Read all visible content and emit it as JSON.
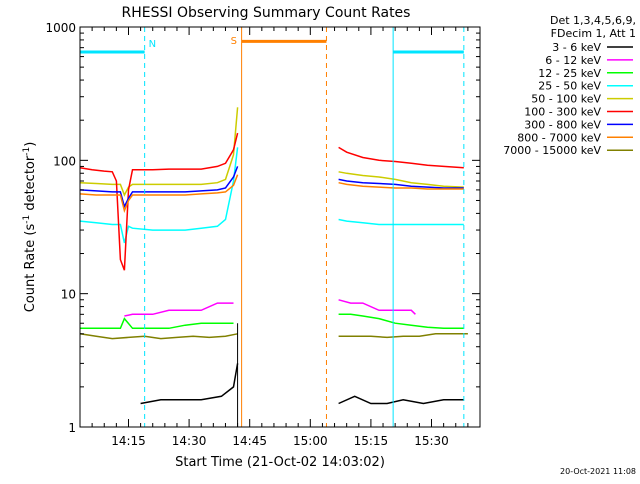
{
  "chart_data": {
    "type": "line",
    "title": "RHESSI Observing Summary Count Rates",
    "xlabel": "Start Time (21-Oct-02 14:03:02)",
    "ylabel": "Count Rate (s",
    "ylabel_sup1": "-1",
    "ylabel_mid": " detector",
    "ylabel_sup2": "-1",
    "ylabel_end": ")",
    "x_unit": "minutes after 14:03:02",
    "xlim": [
      0,
      99
    ],
    "ylim": [
      1,
      1000
    ],
    "y_scale": "log",
    "x_ticks": [
      {
        "value": 12,
        "label": "14:15"
      },
      {
        "value": 27,
        "label": "14:30"
      },
      {
        "value": 42,
        "label": "14:45"
      },
      {
        "value": 57,
        "label": "15:00"
      },
      {
        "value": 72,
        "label": "15:15"
      },
      {
        "value": 87,
        "label": "15:30"
      }
    ],
    "y_ticks": [
      {
        "value": 1,
        "label": "1"
      },
      {
        "value": 10,
        "label": "10"
      },
      {
        "value": 100,
        "label": "100"
      },
      {
        "value": 1000,
        "label": "1000"
      }
    ],
    "legend_header": [
      "Det 1,3,4,5,6,9,",
      "FDecim 1, Att 1"
    ],
    "legend_position": "right",
    "timestamp": "20-Oct-2021 11:08",
    "series": [
      {
        "name": "3 - 6 keV",
        "color": "#000000",
        "segments": [
          {
            "x": [
              15,
              20,
              25,
              30,
              35,
              38,
              39
            ],
            "y": [
              1.5,
              1.6,
              1.6,
              1.6,
              1.7,
              2,
              3
            ]
          },
          {
            "x": [
              64,
              68,
              72,
              76,
              80,
              85,
              90,
              95
            ],
            "y": [
              1.5,
              1.7,
              1.5,
              1.5,
              1.6,
              1.5,
              1.6,
              1.6
            ]
          }
        ]
      },
      {
        "name": "6 - 12 keV",
        "color": "#ff00ff",
        "segments": [
          {
            "x": [
              11,
              13,
              18,
              22,
              26,
              30,
              34,
              38
            ],
            "y": [
              6.8,
              7,
              7,
              7.5,
              7.5,
              7.5,
              8.5,
              8.5
            ]
          },
          {
            "x": [
              64,
              67,
              70,
              74,
              78,
              82,
              83
            ],
            "y": [
              9,
              8.5,
              8.5,
              7.5,
              7.5,
              7.5,
              7
            ]
          }
        ]
      },
      {
        "name": "12 - 25 keV",
        "color": "#00ff00",
        "segments": [
          {
            "x": [
              0,
              4,
              8,
              10,
              11,
              13,
              18,
              22,
              26,
              30,
              34,
              38
            ],
            "y": [
              5.5,
              5.5,
              5.5,
              5.5,
              6.5,
              5.5,
              5.5,
              5.5,
              5.8,
              6,
              6,
              6
            ]
          },
          {
            "x": [
              64,
              67,
              70,
              74,
              78,
              82,
              86,
              90,
              95
            ],
            "y": [
              7,
              7,
              6.8,
              6.5,
              6,
              5.8,
              5.6,
              5.5,
              5.5
            ]
          }
        ]
      },
      {
        "name": "25 - 50 keV",
        "color": "#00ffff",
        "segments": [
          {
            "x": [
              0,
              4,
              8,
              10,
              11,
              12,
              13,
              18,
              22,
              26,
              30,
              34,
              36,
              38,
              39
            ],
            "y": [
              35,
              34,
              33,
              33,
              24,
              32,
              31,
              30,
              30,
              30,
              31,
              32,
              36,
              70,
              125
            ]
          },
          {
            "x": [
              64,
              66,
              70,
              74,
              78,
              82,
              86,
              90,
              95
            ],
            "y": [
              36,
              35,
              34,
              33,
              33,
              33,
              33,
              33,
              33
            ]
          }
        ]
      },
      {
        "name": "50 - 100 keV",
        "color": "#cccc00",
        "segments": [
          {
            "x": [
              0,
              4,
              8,
              10,
              11,
              12,
              13,
              18,
              22,
              26,
              30,
              34,
              36,
              38,
              39
            ],
            "y": [
              68,
              67,
              66,
              66,
              55,
              63,
              66,
              66,
              66,
              66,
              66,
              68,
              72,
              110,
              250
            ]
          },
          {
            "x": [
              64,
              66,
              70,
              74,
              78,
              82,
              86,
              90,
              95
            ],
            "y": [
              82,
              80,
              77,
              75,
              72,
              68,
              66,
              64,
              63
            ]
          }
        ]
      },
      {
        "name": "100 - 300 keV",
        "color": "#ff0000",
        "segments": [
          {
            "x": [
              0,
              3,
              6,
              8,
              9,
              10,
              11,
              12,
              13,
              18,
              22,
              26,
              30,
              34,
              36,
              38,
              39
            ],
            "y": [
              88,
              85,
              83,
              82,
              70,
              18,
              15,
              60,
              85,
              85,
              86,
              86,
              86,
              90,
              95,
              120,
              160
            ]
          },
          {
            "x": [
              64,
              66,
              70,
              74,
              78,
              82,
              86,
              90,
              95
            ],
            "y": [
              125,
              115,
              105,
              100,
              98,
              95,
              92,
              90,
              88
            ]
          }
        ]
      },
      {
        "name": "300 - 800 keV",
        "color": "#0000ff",
        "segments": [
          {
            "x": [
              0,
              4,
              8,
              10,
              11,
              12,
              13,
              18,
              22,
              26,
              30,
              34,
              36,
              38,
              39
            ],
            "y": [
              60,
              59,
              58,
              58,
              45,
              52,
              58,
              58,
              58,
              58,
              59,
              60,
              62,
              75,
              90
            ]
          },
          {
            "x": [
              64,
              66,
              70,
              74,
              78,
              82,
              86,
              90,
              95
            ],
            "y": [
              72,
              70,
              68,
              67,
              66,
              64,
              63,
              62,
              62
            ]
          }
        ]
      },
      {
        "name": "800 - 7000 keV",
        "color": "#ff8000",
        "segments": [
          {
            "x": [
              0,
              4,
              8,
              10,
              11,
              12,
              13,
              18,
              22,
              26,
              30,
              34,
              36,
              38,
              39
            ],
            "y": [
              56,
              55,
              55,
              55,
              42,
              50,
              55,
              55,
              55,
              55,
              56,
              57,
              58,
              65,
              78
            ]
          },
          {
            "x": [
              64,
              66,
              70,
              74,
              78,
              82,
              86,
              90,
              95
            ],
            "y": [
              68,
              66,
              64,
              63,
              62,
              62,
              61,
              61,
              61
            ]
          }
        ]
      },
      {
        "name": "7000 - 15000 keV",
        "color": "#808000",
        "segments": [
          {
            "x": [
              0,
              4,
              8,
              12,
              16,
              20,
              24,
              28,
              32,
              36,
              39
            ],
            "y": [
              5,
              4.8,
              4.6,
              4.7,
              4.8,
              4.6,
              4.7,
              4.8,
              4.7,
              4.8,
              5
            ]
          },
          {
            "x": [
              64,
              68,
              72,
              76,
              80,
              84,
              88,
              92,
              96
            ],
            "y": [
              4.8,
              4.8,
              4.8,
              4.7,
              4.8,
              4.8,
              5,
              5,
              5
            ]
          }
        ]
      }
    ],
    "annotations": {
      "night_bars": [
        {
          "x_start": 0,
          "x_end": 16,
          "y": 650
        },
        {
          "x_start": 77.5,
          "x_end": 95,
          "y": 650
        }
      ],
      "night_markers": [
        {
          "x": 16,
          "label": "N"
        },
        {
          "x": 77.5,
          "label": ""
        },
        {
          "x": 95,
          "label": ""
        }
      ],
      "saa_bar": {
        "x_start": 40,
        "x_end": 61,
        "y": 780
      },
      "saa_markers": [
        {
          "x": 40,
          "label": "S"
        },
        {
          "x": 61,
          "label": ""
        }
      ],
      "attenuator_line": {
        "x": 39
      }
    }
  }
}
